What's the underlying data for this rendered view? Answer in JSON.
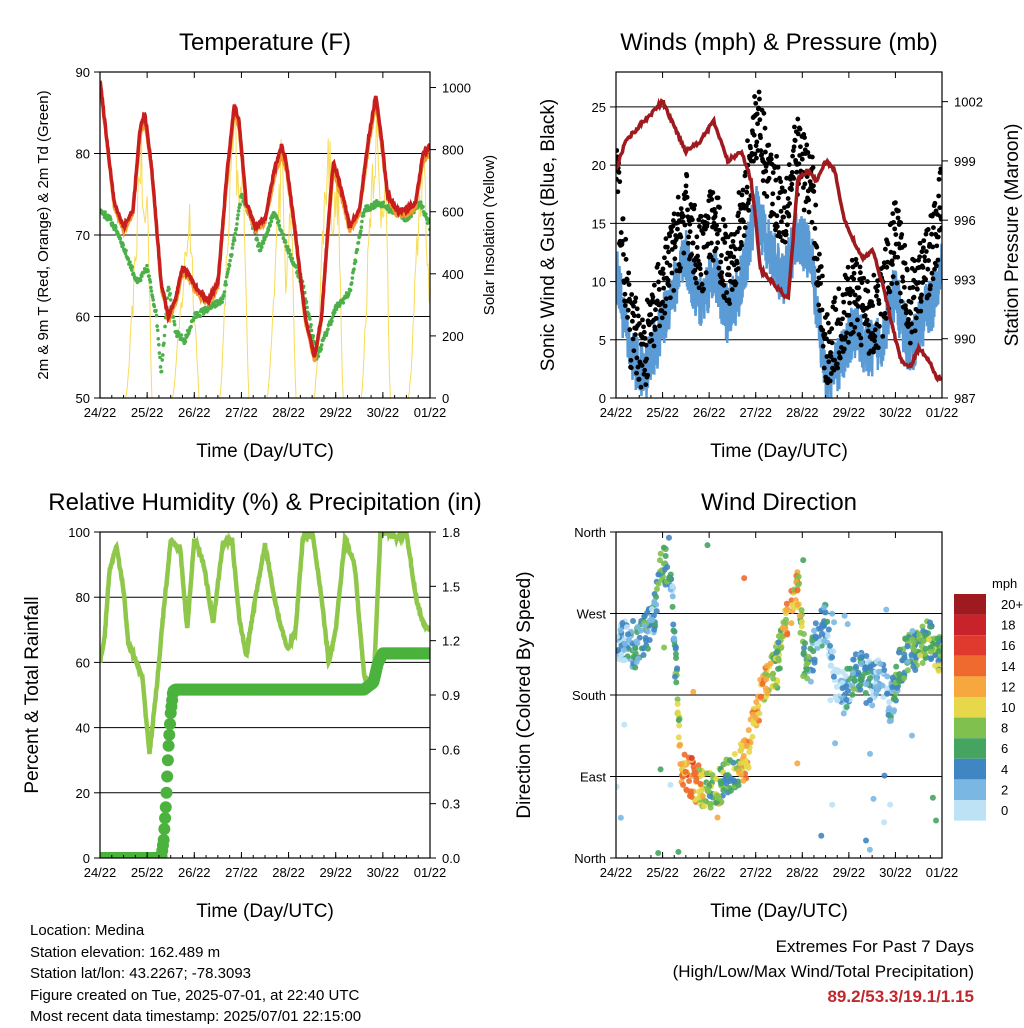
{
  "days": [
    "24/22",
    "25/22",
    "26/22",
    "27/22",
    "28/22",
    "29/22",
    "30/22",
    "01/22"
  ],
  "temperature": {
    "title": "Temperature (F)",
    "ylabel": "2m & 9m T (Red, Orange) & 2m Td (Green)",
    "y2label": "Solar Insolation (Yellow)",
    "xlabel": "Time (Day/UTC)",
    "yticks": [
      "50",
      "60",
      "70",
      "80",
      "90"
    ],
    "y2ticks": [
      "0",
      "200",
      "400",
      "600",
      "800",
      "1000"
    ]
  },
  "winds": {
    "title": "Winds (mph) & Pressure (mb)",
    "ylabel": "Sonic Wind & Gust (Blue, Black)",
    "y2label": "Station Pressure (Maroon)",
    "xlabel": "Time (Day/UTC)",
    "yticks": [
      "0",
      "5",
      "10",
      "15",
      "20",
      "25"
    ],
    "y2ticks": [
      "987",
      "990",
      "993",
      "996",
      "999",
      "1002"
    ]
  },
  "humidity": {
    "title": "Relative Humidity (%) & Precipitation (in)",
    "ylabel": "Percent & Total Rainfall",
    "xlabel": "Time (Day/UTC)",
    "yticks": [
      "0",
      "20",
      "40",
      "60",
      "80",
      "100"
    ],
    "y2ticks": [
      "0.0",
      "0.3",
      "0.6",
      "0.9",
      "1.2",
      "1.5",
      "1.8"
    ]
  },
  "direction": {
    "title": "Wind Direction",
    "ylabel": "Direction (Colored By Speed)",
    "xlabel": "Time (Day/UTC)",
    "yticks": [
      "North",
      "East",
      "South",
      "West",
      "North"
    ],
    "legend_title": "mph",
    "legend_labels": [
      "20+",
      "18",
      "16",
      "14",
      "12",
      "10",
      "8",
      "6",
      "4",
      "2",
      "0"
    ],
    "legend_colors": [
      "#9e1a1f",
      "#c8222a",
      "#e03a2e",
      "#ef6a2e",
      "#f6a83e",
      "#e6d84a",
      "#7fc04f",
      "#45a560",
      "#3f86c2",
      "#7ab8e3",
      "#bde2f5"
    ]
  },
  "footer": {
    "location": "Location: Medina",
    "elevation": "Station elevation: 162.489 m",
    "latlon": "Station lat/lon: 43.2267; -78.3093",
    "created": "Figure created on Tue, 2025-07-01, at 22:40 UTC",
    "recent": "Most recent data timestamp: 2025/07/01 22:15:00"
  },
  "extremes": {
    "line1": "Extremes For Past 7 Days",
    "line2": "(High/Low/Max Wind/Total Precipitation)",
    "values": "89.2/53.3/19.1/1.15"
  },
  "chart_data": [
    {
      "type": "line",
      "title": "Temperature (F)",
      "x_unit": "days since 24/22 UTC",
      "ylim": [
        50,
        90
      ],
      "y2lim": [
        0,
        1050
      ],
      "series": [
        {
          "name": "2m T",
          "color": "#c81e1e",
          "x": [
            0,
            0.1,
            0.3,
            0.5,
            0.7,
            0.85,
            0.95,
            1.1,
            1.3,
            1.45,
            1.6,
            1.75,
            1.9,
            2.1,
            2.3,
            2.5,
            2.7,
            2.85,
            2.95,
            3.1,
            3.3,
            3.5,
            3.7,
            3.85,
            3.95,
            4.15,
            4.35,
            4.55,
            4.7,
            4.85,
            4.95,
            5.1,
            5.3,
            5.5,
            5.7,
            5.85,
            5.95,
            6.1,
            6.3,
            6.5,
            6.7,
            6.85,
            7.0
          ],
          "y": [
            89,
            84,
            74,
            71,
            73,
            83,
            85,
            78,
            64,
            60,
            62,
            66,
            65,
            63,
            62,
            64,
            78,
            86,
            84,
            74,
            71,
            72,
            78,
            81,
            79,
            70,
            60,
            55,
            60,
            72,
            79,
            76,
            71,
            73,
            82,
            87,
            83,
            75,
            73,
            73,
            74,
            80,
            81
          ]
        },
        {
          "name": "9m T",
          "color": "#f29a2e",
          "x": [
            0,
            0.1,
            0.3,
            0.5,
            0.7,
            0.85,
            0.95,
            1.1,
            1.3,
            1.45,
            1.6,
            1.75,
            1.9,
            2.1,
            2.3,
            2.5,
            2.7,
            2.85,
            2.95,
            3.1,
            3.3,
            3.5,
            3.7,
            3.85,
            3.95,
            4.15,
            4.35,
            4.55,
            4.7,
            4.85,
            4.95,
            5.1,
            5.3,
            5.5,
            5.7,
            5.85,
            5.95,
            6.1,
            6.3,
            6.5,
            6.7,
            6.85,
            7.0
          ],
          "y": [
            88.5,
            83.5,
            73.5,
            70.5,
            72.5,
            82,
            84,
            77.5,
            63.5,
            59.5,
            61.5,
            65.5,
            64.5,
            62.5,
            61.5,
            63.5,
            77,
            85,
            83,
            73.5,
            70.5,
            71.5,
            77,
            80,
            78,
            69.5,
            59.5,
            54.5,
            59.5,
            71,
            78,
            75,
            70.5,
            72.5,
            81,
            86,
            82,
            74.5,
            72.5,
            72.5,
            73.5,
            79,
            80
          ]
        },
        {
          "name": "2m Td",
          "color": "#4cb04a",
          "x": [
            0,
            0.2,
            0.4,
            0.6,
            0.8,
            1.0,
            1.2,
            1.3,
            1.45,
            1.6,
            1.8,
            2.0,
            2.3,
            2.6,
            2.9,
            3.0,
            3.2,
            3.4,
            3.7,
            4.0,
            4.3,
            4.6,
            4.8,
            5.0,
            5.3,
            5.6,
            5.9,
            6.2,
            6.5,
            6.8,
            7.0
          ],
          "y": [
            73,
            72,
            70,
            67,
            64,
            66,
            60,
            53,
            64,
            58,
            57,
            60,
            61,
            62,
            71,
            75,
            72,
            68,
            73,
            68,
            64,
            55,
            58,
            61,
            63,
            73,
            74,
            73,
            72,
            74,
            71
          ]
        },
        {
          "name": "Solar Insolation",
          "axis": "y2",
          "color": "#f8dc58",
          "x": [
            0,
            0.3,
            0.55,
            0.6,
            0.75,
            0.85,
            0.95,
            1.0,
            1.1,
            1.55,
            1.6,
            1.75,
            1.9,
            2.0,
            2.1,
            2.55,
            2.6,
            2.75,
            2.85,
            2.95,
            3.05,
            3.15,
            3.55,
            3.6,
            3.75,
            3.85,
            3.95,
            4.05,
            4.15,
            4.55,
            4.6,
            4.75,
            4.85,
            4.95,
            5.05,
            5.15,
            5.55,
            5.6,
            5.75,
            5.85,
            5.95,
            6.05,
            6.15,
            6.55,
            6.6,
            6.75,
            6.85,
            6.95,
            7.0
          ],
          "y": [
            0,
            0,
            0,
            80,
            500,
            950,
            600,
            800,
            0,
            0,
            100,
            400,
            700,
            350,
            0,
            0,
            150,
            750,
            1000,
            700,
            850,
            0,
            0,
            90,
            600,
            900,
            400,
            750,
            0,
            0,
            120,
            700,
            950,
            650,
            800,
            0,
            0,
            160,
            800,
            1000,
            700,
            880,
            0,
            0,
            100,
            650,
            900,
            500,
            400
          ]
        }
      ]
    },
    {
      "type": "scatter",
      "title": "Winds (mph) & Pressure (mb)",
      "x_unit": "days since 24/22 UTC",
      "ylim": [
        0,
        28
      ],
      "y2lim": [
        987,
        1003.5
      ],
      "series": [
        {
          "name": "Sonic Wind",
          "color": "#5b9bd5",
          "x": [
            0,
            0.3,
            0.6,
            0.9,
            1.2,
            1.5,
            1.8,
            2.1,
            2.4,
            2.7,
            3.0,
            3.3,
            3.6,
            3.9,
            4.2,
            4.5,
            4.8,
            5.1,
            5.4,
            5.7,
            6.0,
            6.3,
            6.6,
            6.9,
            7.0
          ],
          "y": [
            11,
            4,
            2,
            5,
            9,
            12,
            8,
            11,
            7,
            10,
            16,
            13,
            10,
            14,
            12,
            1,
            3,
            6,
            4,
            5,
            9,
            4,
            7,
            9,
            12
          ]
        },
        {
          "name": "Gust",
          "color": "#000000",
          "x": [
            0,
            0.3,
            0.6,
            0.9,
            1.2,
            1.5,
            1.8,
            2.1,
            2.4,
            2.7,
            3.0,
            3.3,
            3.6,
            3.9,
            4.2,
            4.5,
            4.8,
            5.1,
            5.4,
            5.7,
            6.0,
            6.3,
            6.6,
            6.9,
            7.0
          ],
          "y": [
            20,
            6,
            4,
            8,
            12,
            16,
            12,
            15,
            11,
            15,
            24,
            19,
            16,
            21,
            18,
            4,
            6,
            9,
            7,
            8,
            14,
            8,
            11,
            14,
            18
          ]
        },
        {
          "name": "Station Pressure",
          "axis": "y2",
          "color": "#9e1a1f",
          "x": [
            0,
            0.2,
            0.4,
            0.6,
            0.8,
            1.0,
            1.2,
            1.5,
            1.8,
            2.1,
            2.4,
            2.7,
            2.9,
            3.0,
            3.1,
            3.3,
            3.5,
            3.7,
            3.9,
            4.1,
            4.3,
            4.5,
            4.7,
            4.9,
            5.1,
            5.3,
            5.5,
            5.7,
            5.9,
            6.1,
            6.3,
            6.5,
            6.7,
            6.9,
            7.0
          ],
          "y": [
            998.5,
            1000,
            1000.5,
            1001,
            1001.5,
            1002,
            1001,
            999.5,
            1000,
            1001,
            999,
            999.5,
            998,
            996,
            993.5,
            993,
            992.5,
            992,
            998,
            998.5,
            998,
            999,
            998.5,
            996,
            995,
            994,
            994.5,
            993,
            991,
            989,
            988.5,
            989.5,
            989,
            988,
            988
          ]
        }
      ]
    },
    {
      "type": "line",
      "title": "Relative Humidity (%) & Precipitation (in)",
      "x_unit": "days since 24/22 UTC",
      "ylim": [
        0,
        100
      ],
      "y2lim": [
        0,
        1.8
      ],
      "series": [
        {
          "name": "Relative Humidity",
          "color": "#8fc74a",
          "x": [
            0,
            0.1,
            0.2,
            0.35,
            0.5,
            0.6,
            0.75,
            0.9,
            1.05,
            1.2,
            1.35,
            1.5,
            1.7,
            1.85,
            2.0,
            2.2,
            2.4,
            2.6,
            2.8,
            2.95,
            3.1,
            3.3,
            3.5,
            3.7,
            3.85,
            4.0,
            4.15,
            4.3,
            4.5,
            4.7,
            4.85,
            5.0,
            5.2,
            5.4,
            5.6,
            5.8,
            5.95,
            6.1,
            6.3,
            6.5,
            6.7,
            6.85,
            7.0
          ],
          "y": [
            60,
            68,
            88,
            96,
            82,
            66,
            61,
            55,
            32,
            52,
            76,
            97,
            95,
            70,
            98,
            90,
            72,
            96,
            98,
            74,
            62,
            80,
            96,
            80,
            70,
            64,
            70,
            98,
            100,
            80,
            60,
            70,
            98,
            90,
            56,
            52,
            100,
            100,
            98,
            100,
            80,
            72,
            70
          ]
        },
        {
          "name": "Total Precipitation",
          "axis": "y2",
          "color": "#4bb33d",
          "x": [
            0,
            1.3,
            1.35,
            1.4,
            1.45,
            1.5,
            1.55,
            1.6,
            5.6,
            5.7,
            5.8,
            5.9,
            6.0,
            7.0
          ],
          "y": [
            0,
            0,
            0.1,
            0.3,
            0.6,
            0.8,
            0.92,
            0.93,
            0.93,
            0.95,
            0.97,
            1.08,
            1.13,
            1.13
          ]
        }
      ]
    },
    {
      "type": "scatter",
      "title": "Wind Direction",
      "x_unit": "days since 24/22 UTC",
      "ylim": [
        0,
        360
      ],
      "series": [
        {
          "name": "Direction",
          "color_by": "speed (mph)",
          "x": [
            0,
            0.2,
            0.4,
            0.6,
            0.8,
            1.0,
            1.2,
            1.4,
            1.6,
            1.8,
            2.0,
            2.2,
            2.4,
            2.6,
            2.8,
            3.0,
            3.1,
            3.3,
            3.5,
            3.7,
            3.9,
            4.1,
            4.3,
            4.5,
            4.7,
            4.9,
            5.1,
            5.3,
            5.5,
            5.7,
            5.9,
            6.1,
            6.3,
            6.5,
            6.7,
            6.9,
            7.0
          ],
          "y": [
            235,
            240,
            230,
            245,
            260,
            330,
            300,
            100,
            90,
            80,
            75,
            80,
            90,
            100,
            110,
            160,
            180,
            200,
            220,
            270,
            300,
            200,
            240,
            260,
            200,
            180,
            200,
            210,
            190,
            200,
            170,
            210,
            230,
            230,
            240,
            230,
            225
          ],
          "speed": [
            4,
            3,
            5,
            6,
            4,
            8,
            4,
            12,
            14,
            12,
            8,
            10,
            6,
            8,
            14,
            12,
            14,
            10,
            8,
            14,
            12,
            6,
            3,
            4,
            2,
            3,
            6,
            5,
            4,
            3,
            4,
            8,
            6,
            8,
            8,
            8,
            8
          ]
        }
      ]
    }
  ]
}
